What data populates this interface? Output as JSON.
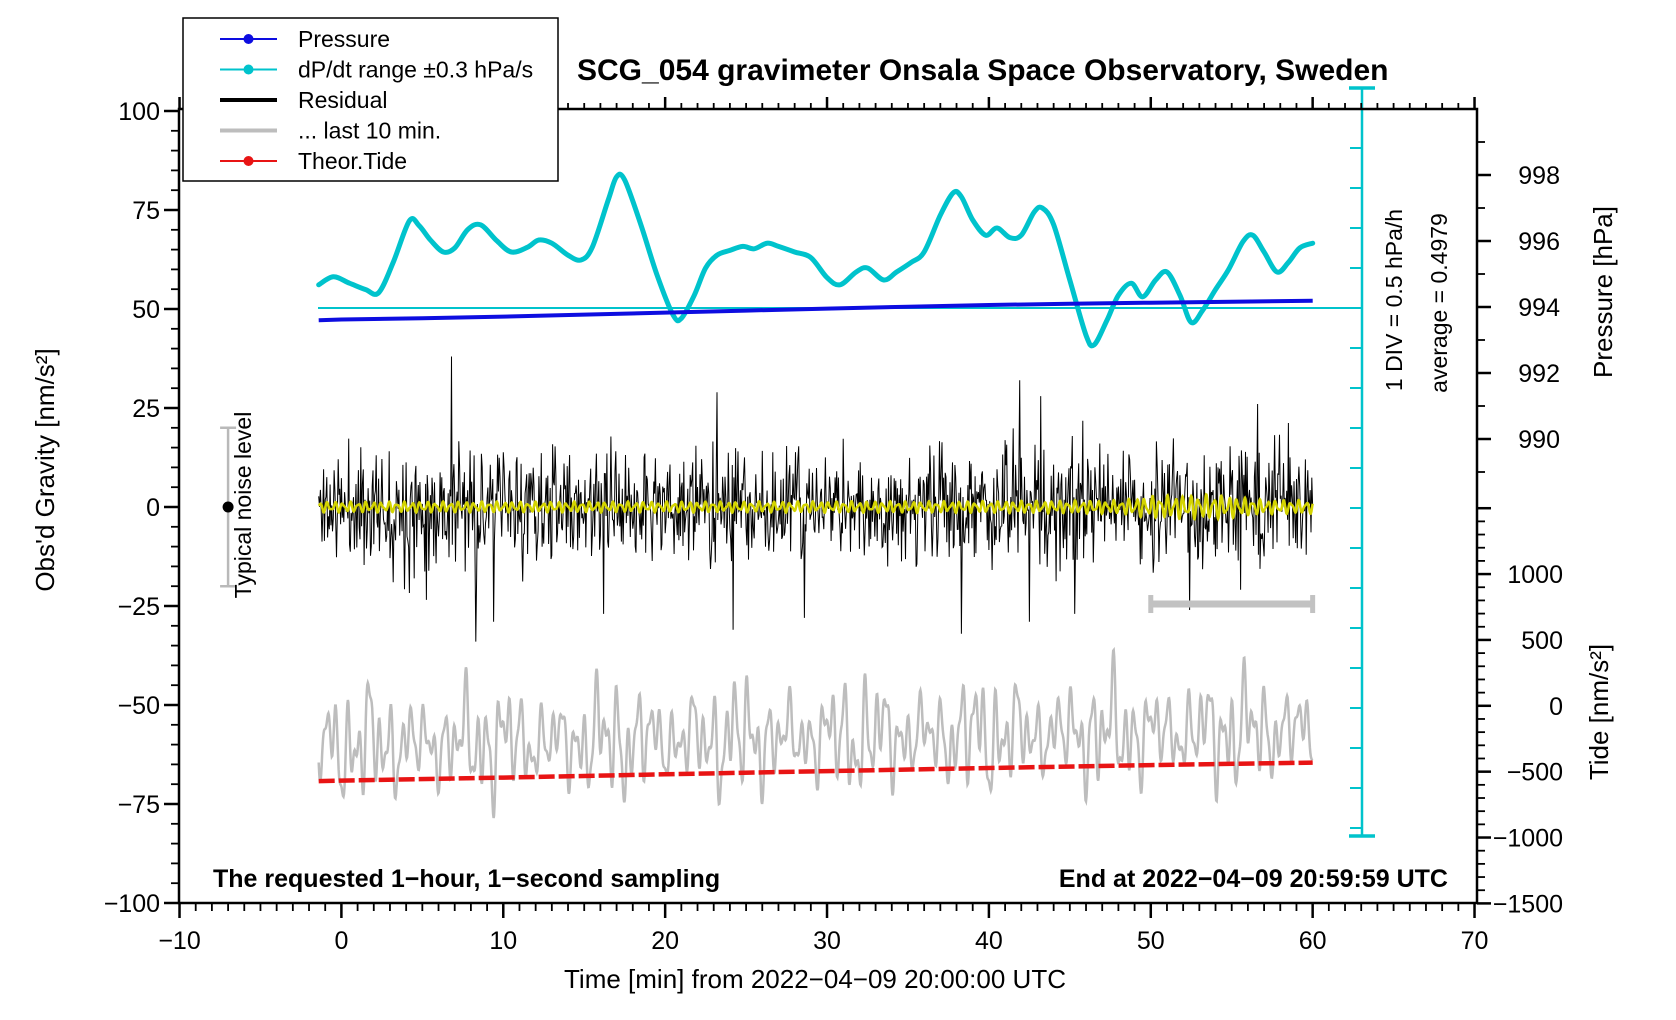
{
  "title": "SCG_054 gravimeter Onsala Space Observatory, Sweden",
  "colors": {
    "pressure_blue": "#0d0de0",
    "dpdt_cyan": "#00c3cc",
    "residual_black": "#000000",
    "last10_gray": "#bdbdbd",
    "tide_red": "#e81414",
    "smooth_yellow": "#d4d400",
    "marker_gray": "#b9b9b9",
    "frame": "#000000"
  },
  "legend": {
    "items": [
      {
        "label": "Pressure",
        "color": "#0d0de0",
        "line_width": 2,
        "dot": true
      },
      {
        "label": "dP/dt range ±0.3 hPa/s",
        "color": "#00c3cc",
        "line_width": 2,
        "dot": true
      },
      {
        "label": "Residual",
        "color": "#000000",
        "line_width": 4,
        "dot": false
      },
      {
        "label": "... last 10 min.",
        "color": "#bdbdbd",
        "line_width": 4,
        "dot": false
      },
      {
        "label": "Theor.Tide",
        "color": "#e81414",
        "line_width": 2,
        "dot": true
      }
    ]
  },
  "axes": {
    "x": {
      "label": "Time [min] from 2022−04−09 20:00:00 UTC",
      "min": -10,
      "max": 70,
      "major": 10,
      "minor": 1,
      "tick_labels": [
        -10,
        0,
        10,
        20,
        30,
        40,
        50,
        60,
        70
      ]
    },
    "gravity": {
      "label": "Obs'd Gravity [nm/s²]",
      "min": -100,
      "max": 100,
      "major": 25,
      "minor": 5,
      "tick_labels": [
        100,
        75,
        50,
        25,
        0,
        -25,
        -50,
        -75,
        -100
      ]
    },
    "pressure": {
      "label": "Pressure [hPa]",
      "min": 988,
      "max": 1000,
      "major": 2,
      "minor": 1,
      "tick_labels": [
        998,
        996,
        994,
        992,
        990
      ]
    },
    "tide": {
      "label": "Tide [nm/s²]",
      "min": -1500,
      "max": 1500,
      "major": 500,
      "minor": 100,
      "tick_labels": [
        1000,
        500,
        0,
        -500,
        -1000,
        -1500
      ]
    }
  },
  "annotations": {
    "div_scale": "1 DIV = 0.5 hPa/h",
    "average": "average = 0.4979",
    "noise_level": "Typical noise level",
    "sampling": "The requested 1−hour, 1−second sampling",
    "end_time": "End at 2022−04−09 20:59:59 UTC"
  },
  "chart_data": {
    "type": "line",
    "title": "SCG_054 gravimeter Onsala Space Observatory, Sweden",
    "xlabel": "Time [min] from 2022−04−09 20:00:00 UTC",
    "x_range": [
      -10,
      70
    ],
    "grid": false,
    "legend_position": "top-left",
    "scale_bar": {
      "div_value_hpa_per_h": 0.5,
      "average_dpdt_hpa_per_h": 0.4979
    },
    "noise_marker": {
      "t": -7,
      "value": 0,
      "error": 20,
      "unit": "nm/s²"
    },
    "last10_window_bar": {
      "t_start": 50,
      "t_end": 60,
      "gravity_level": -24.5
    },
    "series": [
      {
        "name": "Pressure",
        "axis": "pressure",
        "unit": "hPa",
        "points": [
          [
            -1.4,
            993.6
          ],
          [
            0,
            993.62
          ],
          [
            5,
            993.66
          ],
          [
            10,
            993.71
          ],
          [
            15,
            993.77
          ],
          [
            20,
            993.83
          ],
          [
            25,
            993.89
          ],
          [
            30,
            993.95
          ],
          [
            35,
            994.01
          ],
          [
            40,
            994.06
          ],
          [
            45,
            994.1
          ],
          [
            50,
            994.13
          ],
          [
            55,
            994.16
          ],
          [
            60,
            994.19
          ]
        ]
      },
      {
        "name": "dP/dt",
        "axis": "dpdt",
        "unit": "hPa/h",
        "zero_reference": 0,
        "points": [
          [
            -1.4,
            0.29
          ],
          [
            -0.5,
            0.39
          ],
          [
            0.5,
            0.31
          ],
          [
            1.5,
            0.23
          ],
          [
            2.3,
            0.19
          ],
          [
            3.2,
            0.57
          ],
          [
            4.2,
            1.09
          ],
          [
            4.8,
            1.03
          ],
          [
            5.5,
            0.85
          ],
          [
            6.3,
            0.7
          ],
          [
            7.0,
            0.75
          ],
          [
            7.8,
            0.98
          ],
          [
            8.6,
            1.04
          ],
          [
            9.6,
            0.84
          ],
          [
            10.5,
            0.7
          ],
          [
            11.5,
            0.76
          ],
          [
            12.2,
            0.85
          ],
          [
            13.0,
            0.81
          ],
          [
            14.0,
            0.66
          ],
          [
            14.8,
            0.6
          ],
          [
            15.5,
            0.76
          ],
          [
            16.5,
            1.36
          ],
          [
            17.0,
            1.64
          ],
          [
            17.5,
            1.6
          ],
          [
            18.5,
            1.04
          ],
          [
            19.5,
            0.41
          ],
          [
            20.5,
            -0.09
          ],
          [
            21.0,
            -0.13
          ],
          [
            21.8,
            0.16
          ],
          [
            22.5,
            0.5
          ],
          [
            23.2,
            0.66
          ],
          [
            24.0,
            0.72
          ],
          [
            24.8,
            0.77
          ],
          [
            25.5,
            0.74
          ],
          [
            26.3,
            0.81
          ],
          [
            27.0,
            0.77
          ],
          [
            28.0,
            0.7
          ],
          [
            29.0,
            0.63
          ],
          [
            30.0,
            0.38
          ],
          [
            30.8,
            0.29
          ],
          [
            31.8,
            0.45
          ],
          [
            32.5,
            0.5
          ],
          [
            33.5,
            0.35
          ],
          [
            34.3,
            0.45
          ],
          [
            35.2,
            0.57
          ],
          [
            36.0,
            0.7
          ],
          [
            37.0,
            1.16
          ],
          [
            37.8,
            1.44
          ],
          [
            38.3,
            1.39
          ],
          [
            39.0,
            1.1
          ],
          [
            39.8,
            0.91
          ],
          [
            40.5,
            1.0
          ],
          [
            41.3,
            0.88
          ],
          [
            42.0,
            0.91
          ],
          [
            42.8,
            1.2
          ],
          [
            43.3,
            1.25
          ],
          [
            44.0,
            1.04
          ],
          [
            45.0,
            0.35
          ],
          [
            46.0,
            -0.34
          ],
          [
            46.5,
            -0.46
          ],
          [
            47.3,
            -0.15
          ],
          [
            48.0,
            0.16
          ],
          [
            48.8,
            0.31
          ],
          [
            49.5,
            0.14
          ],
          [
            50.3,
            0.35
          ],
          [
            51.0,
            0.45
          ],
          [
            51.8,
            0.16
          ],
          [
            52.5,
            -0.18
          ],
          [
            53.2,
            -0.03
          ],
          [
            54.0,
            0.23
          ],
          [
            54.8,
            0.48
          ],
          [
            55.7,
            0.83
          ],
          [
            56.3,
            0.91
          ],
          [
            57.0,
            0.7
          ],
          [
            57.8,
            0.45
          ],
          [
            58.5,
            0.57
          ],
          [
            59.2,
            0.75
          ],
          [
            60,
            0.81
          ]
        ]
      },
      {
        "name": "Residual",
        "axis": "gravity",
        "unit": "nm/s²",
        "mean": 0,
        "seed": 11,
        "dt": 0.05,
        "std_envelope": [
          [
            -1.4,
            6.5
          ],
          [
            5,
            8
          ],
          [
            10,
            7.5
          ],
          [
            15,
            7
          ],
          [
            20,
            6.5
          ],
          [
            25,
            7.5
          ],
          [
            30,
            7
          ],
          [
            35,
            7.2
          ],
          [
            40,
            7.8
          ],
          [
            45,
            7.4
          ],
          [
            50,
            7
          ],
          [
            55,
            7.8
          ],
          [
            60,
            7.8
          ]
        ],
        "spikes": [
          [
            6.8,
            38
          ],
          [
            8.3,
            -34
          ],
          [
            9.4,
            -29
          ],
          [
            16.2,
            -27
          ],
          [
            23.2,
            29
          ],
          [
            24.2,
            -31
          ],
          [
            28.6,
            -28
          ],
          [
            38.3,
            -32
          ],
          [
            41.9,
            32
          ],
          [
            42.5,
            -29
          ],
          [
            43.2,
            28
          ],
          [
            45.3,
            -27
          ],
          [
            52.4,
            -26
          ],
          [
            56.6,
            26
          ]
        ]
      },
      {
        "name": "Residual smooth",
        "axis": "gravity",
        "unit": "nm/s²",
        "frequency_cpm": 2.1,
        "amplitude_envelope": [
          [
            -1.4,
            1.2
          ],
          [
            20,
            1.2
          ],
          [
            40,
            1.3
          ],
          [
            48,
            1.5
          ],
          [
            50,
            2.5
          ],
          [
            54,
            2.8
          ],
          [
            57,
            1.6
          ],
          [
            60,
            1.5
          ]
        ]
      },
      {
        "name": "... last 10 min.",
        "axis": "tide",
        "unit": "nm/s²",
        "seed": 5,
        "amplitude": 190,
        "center": [
          [
            -1.4,
            -300
          ],
          [
            30,
            -240
          ],
          [
            60,
            -185
          ]
        ],
        "components_freq_amp": [
          [
            1.5,
            1.0
          ],
          [
            0.85,
            0.75
          ],
          [
            2.6,
            0.55
          ],
          [
            0.35,
            0.5
          ]
        ]
      },
      {
        "name": "Theor.Tide",
        "axis": "tide",
        "unit": "nm/s²",
        "points": [
          [
            -1.4,
            -572
          ],
          [
            0,
            -568
          ],
          [
            10,
            -545
          ],
          [
            20,
            -520
          ],
          [
            30,
            -496
          ],
          [
            40,
            -472
          ],
          [
            50,
            -450
          ],
          [
            60,
            -431
          ]
        ]
      }
    ]
  }
}
